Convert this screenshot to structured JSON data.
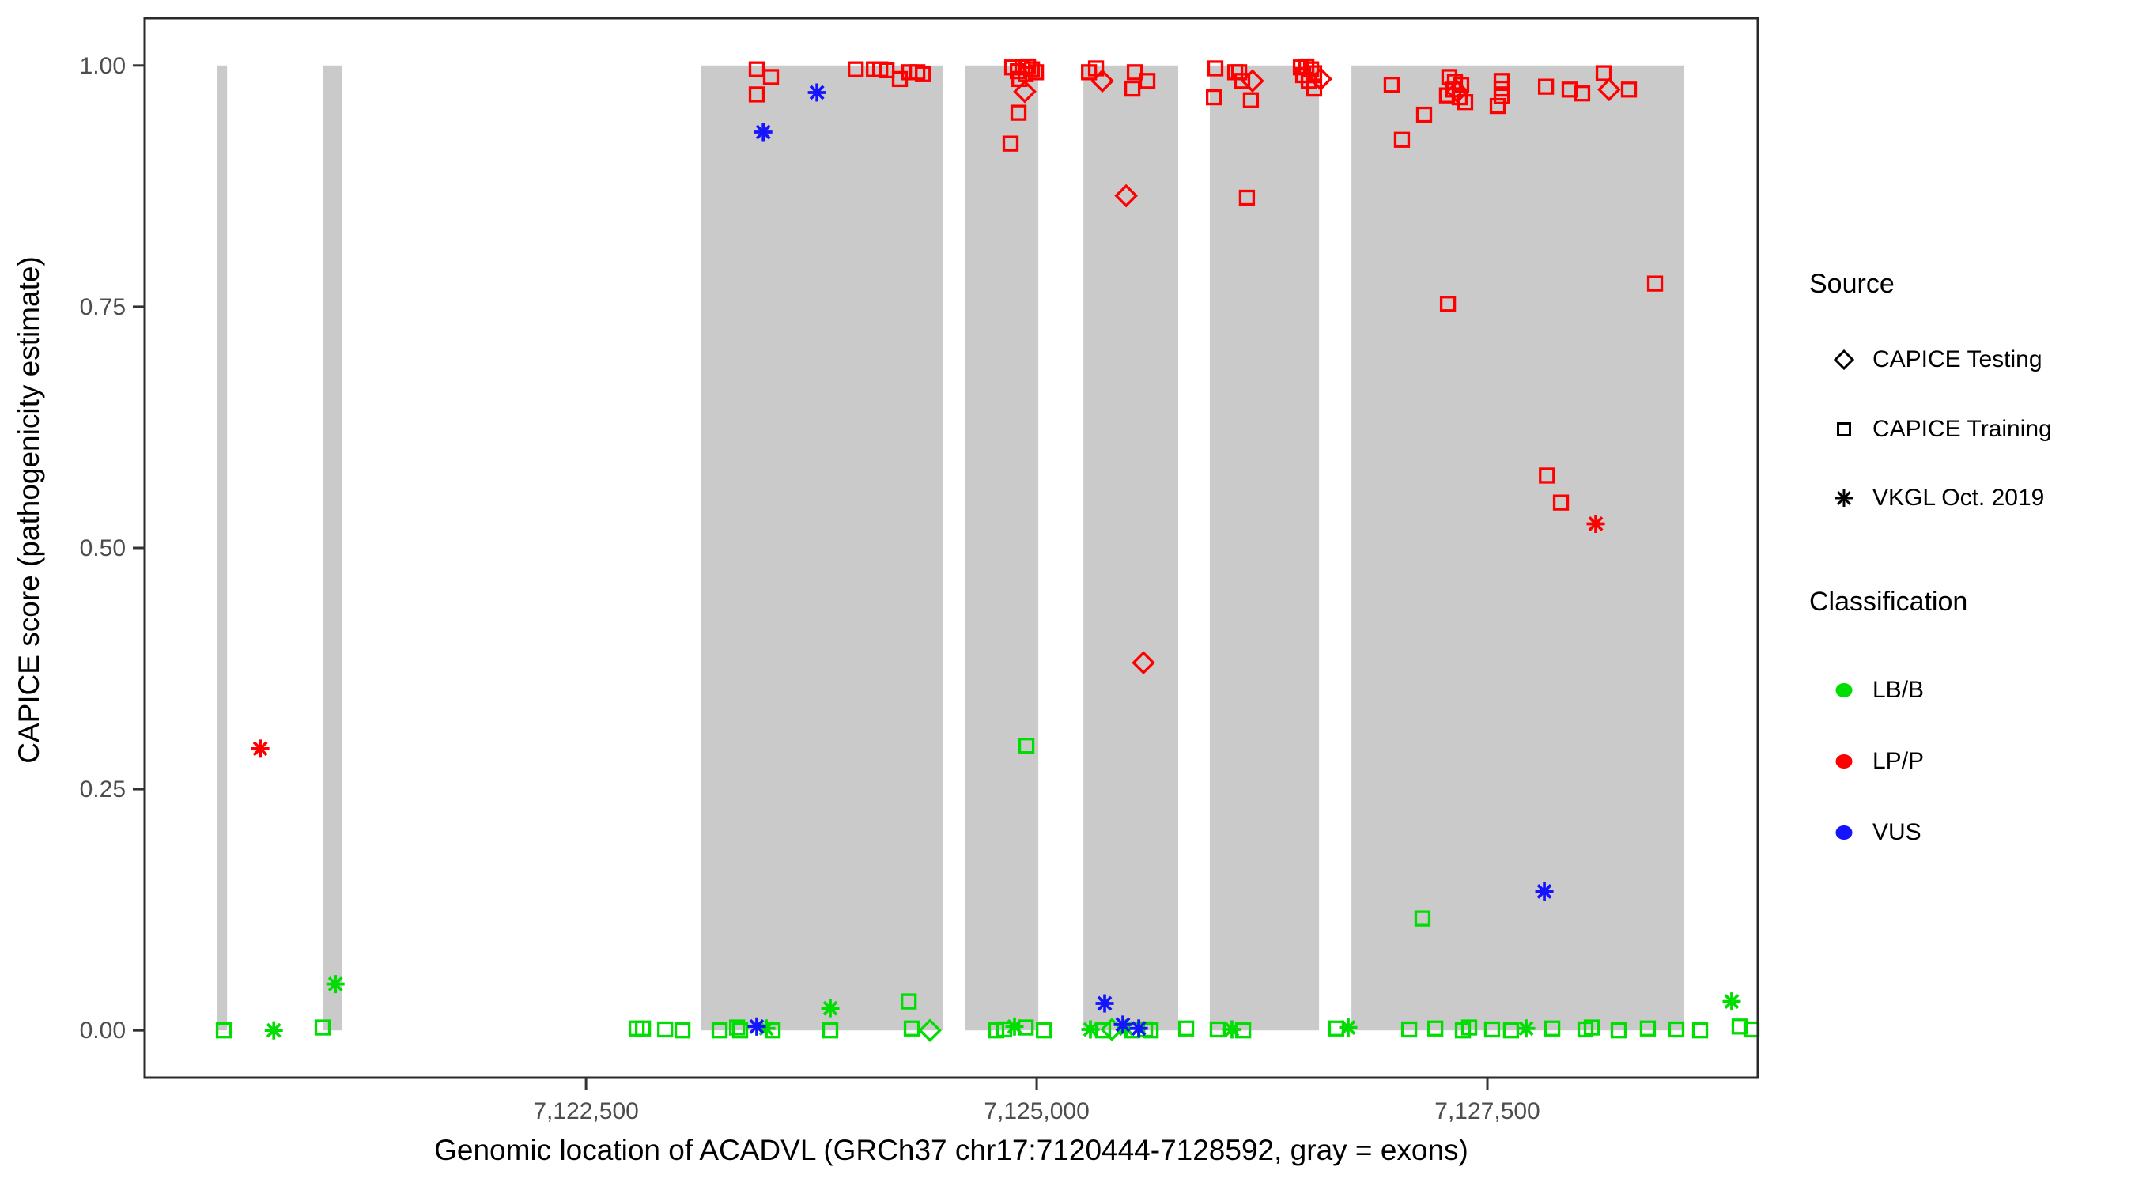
{
  "figure": {
    "x_axis_title": "Genomic location of ACADVL (GRCh37 chr17:7120444-7128592, gray = exons)",
    "y_axis_title": "CAPICE score (pathogenicity estimate)"
  },
  "legend": {
    "source": {
      "title": "Source",
      "items": [
        {
          "label": "CAPICE Testing",
          "marker": "diamond"
        },
        {
          "label": "CAPICE Training",
          "marker": "square"
        },
        {
          "label": "VKGL Oct. 2019",
          "marker": "asterisk"
        }
      ]
    },
    "classification": {
      "title": "Classification",
      "items": [
        {
          "label": "LB/B",
          "color": "#00DD00"
        },
        {
          "label": "LP/P",
          "color": "#FF0000"
        },
        {
          "label": "VUS",
          "color": "#1414FF"
        }
      ]
    }
  },
  "colors": {
    "exon_band": "#CACACA",
    "green": "#00DD00",
    "red": "#FF0000",
    "blue": "#1414FF",
    "tick_text": "#4D4D4D",
    "axis_line": "#2A2A2A",
    "background": "#FFFFFF"
  },
  "chart_data": {
    "type": "scatter",
    "title": "",
    "xlabel": "Genomic location of ACADVL (GRCh37 chr17:7120444-7128592, gray = exons)",
    "ylabel": "CAPICE score (pathogenicity estimate)",
    "x_range_bp": [
      7120052,
      7129000
    ],
    "y_range": [
      -0.049,
      1.049
    ],
    "grid": false,
    "legend_position": "right",
    "x_ticks": [
      {
        "value": 7122500,
        "label": "7,122,500"
      },
      {
        "value": 7125000,
        "label": "7,125,000"
      },
      {
        "value": 7127500,
        "label": "7,127,500"
      }
    ],
    "y_ticks": [
      {
        "value": 0.0,
        "label": "0.00"
      },
      {
        "value": 0.25,
        "label": "0.25"
      },
      {
        "value": 0.5,
        "label": "0.50"
      },
      {
        "value": 0.75,
        "label": "0.75"
      },
      {
        "value": 1.0,
        "label": "1.00"
      }
    ],
    "exon_bands_bp": [
      [
        7120452,
        7120509
      ],
      [
        7121039,
        7121145
      ],
      [
        7123136,
        7124478
      ],
      [
        7124605,
        7125009
      ],
      [
        7125259,
        7125785
      ],
      [
        7125960,
        7126566
      ],
      [
        7126746,
        7128592
      ]
    ],
    "point_format": [
      "bp",
      "score",
      "source"
    ],
    "source_codes": {
      "tr": "CAPICE Training (open square)",
      "te": "CAPICE Testing (open diamond)",
      "vk": "VKGL Oct. 2019 (asterisk)"
    },
    "series": [
      {
        "name": "LB/B",
        "classification": "LB/B",
        "color_key": "green",
        "points": [
          [
            7120491,
            0.0,
            "tr"
          ],
          [
            7120768,
            0.0,
            "vk"
          ],
          [
            7121039,
            0.003,
            "tr"
          ],
          [
            7121110,
            0.048,
            "vk"
          ],
          [
            7122781,
            0.002,
            "tr"
          ],
          [
            7122816,
            0.002,
            "tr"
          ],
          [
            7122939,
            0.001,
            "tr"
          ],
          [
            7123035,
            0.0,
            "tr"
          ],
          [
            7123241,
            0.0,
            "tr"
          ],
          [
            7123338,
            0.003,
            "tr"
          ],
          [
            7123355,
            0.0,
            "tr"
          ],
          [
            7123500,
            0.002,
            "vk"
          ],
          [
            7123535,
            0.0,
            "tr"
          ],
          [
            7123855,
            0.023,
            "vk"
          ],
          [
            7123855,
            0.0,
            "tr"
          ],
          [
            7124290,
            0.03,
            "tr"
          ],
          [
            7124307,
            0.002,
            "tr"
          ],
          [
            7124408,
            0.0,
            "te"
          ],
          [
            7124776,
            0.0,
            "tr"
          ],
          [
            7124820,
            0.001,
            "tr"
          ],
          [
            7124877,
            0.004,
            "vk"
          ],
          [
            7124939,
            0.003,
            "tr"
          ],
          [
            7124943,
            0.295,
            "tr"
          ],
          [
            7125040,
            0.0,
            "tr"
          ],
          [
            7125298,
            0.001,
            "vk"
          ],
          [
            7125368,
            0.0,
            "tr"
          ],
          [
            7125417,
            0.001,
            "te"
          ],
          [
            7125496,
            0.002,
            "vk"
          ],
          [
            7125531,
            0.0,
            "tr"
          ],
          [
            7125601,
            0.001,
            "tr"
          ],
          [
            7125632,
            0.0,
            "tr"
          ],
          [
            7125829,
            0.002,
            "tr"
          ],
          [
            7126004,
            0.001,
            "tr"
          ],
          [
            7126083,
            0.001,
            "vk"
          ],
          [
            7126145,
            0.0,
            "tr"
          ],
          [
            7126662,
            0.002,
            "tr"
          ],
          [
            7126728,
            0.003,
            "vk"
          ],
          [
            7127066,
            0.001,
            "tr"
          ],
          [
            7127140,
            0.116,
            "tr"
          ],
          [
            7127211,
            0.002,
            "tr"
          ],
          [
            7127364,
            0.0,
            "tr"
          ],
          [
            7127399,
            0.003,
            "tr"
          ],
          [
            7127526,
            0.001,
            "tr"
          ],
          [
            7127631,
            0.0,
            "tr"
          ],
          [
            7127715,
            0.002,
            "vk"
          ],
          [
            7127860,
            0.002,
            "tr"
          ],
          [
            7128044,
            0.001,
            "tr"
          ],
          [
            7128079,
            0.003,
            "tr"
          ],
          [
            7128228,
            0.0,
            "tr"
          ],
          [
            7128390,
            0.002,
            "tr"
          ],
          [
            7128548,
            0.001,
            "tr"
          ],
          [
            7128680,
            0.0,
            "tr"
          ],
          [
            7128855,
            0.03,
            "vk"
          ],
          [
            7128899,
            0.004,
            "tr"
          ],
          [
            7128965,
            0.001,
            "tr"
          ]
        ]
      },
      {
        "name": "LP/P",
        "classification": "LP/P",
        "color_key": "red",
        "points": [
          [
            7120693,
            0.292,
            "vk"
          ],
          [
            7123447,
            0.996,
            "tr"
          ],
          [
            7123526,
            0.988,
            "tr"
          ],
          [
            7123447,
            0.97,
            "tr"
          ],
          [
            7123996,
            0.996,
            "tr"
          ],
          [
            7124097,
            0.996,
            "tr"
          ],
          [
            7124132,
            0.996,
            "tr"
          ],
          [
            7124167,
            0.995,
            "tr"
          ],
          [
            7124241,
            0.986,
            "tr"
          ],
          [
            7124294,
            0.993,
            "tr"
          ],
          [
            7124338,
            0.993,
            "tr"
          ],
          [
            7124369,
            0.991,
            "tr"
          ],
          [
            7124855,
            0.919,
            "tr"
          ],
          [
            7124864,
            0.998,
            "tr"
          ],
          [
            7124895,
            0.994,
            "tr"
          ],
          [
            7124899,
            0.951,
            "tr"
          ],
          [
            7124904,
            0.986,
            "tr"
          ],
          [
            7124921,
            0.998,
            "tr"
          ],
          [
            7124934,
            0.973,
            "te"
          ],
          [
            7124939,
            0.991,
            "tr"
          ],
          [
            7124952,
            0.999,
            "tr"
          ],
          [
            7124974,
            0.996,
            "tr"
          ],
          [
            7124996,
            0.993,
            "tr"
          ],
          [
            7125290,
            0.993,
            "tr"
          ],
          [
            7125329,
            0.997,
            "tr"
          ],
          [
            7125364,
            0.984,
            "te"
          ],
          [
            7125496,
            0.865,
            "te"
          ],
          [
            7125531,
            0.976,
            "tr"
          ],
          [
            7125544,
            0.993,
            "tr"
          ],
          [
            7125592,
            0.381,
            "te"
          ],
          [
            7125614,
            0.984,
            "tr"
          ],
          [
            7125983,
            0.967,
            "tr"
          ],
          [
            7125991,
            0.997,
            "tr"
          ],
          [
            7126101,
            0.993,
            "tr"
          ],
          [
            7126123,
            0.993,
            "tr"
          ],
          [
            7126140,
            0.984,
            "tr"
          ],
          [
            7126166,
            0.863,
            "tr"
          ],
          [
            7126188,
            0.964,
            "tr"
          ],
          [
            7126197,
            0.984,
            "te"
          ],
          [
            7126465,
            0.998,
            "tr"
          ],
          [
            7126478,
            0.99,
            "tr"
          ],
          [
            7126496,
            0.999,
            "tr"
          ],
          [
            7126509,
            0.984,
            "tr"
          ],
          [
            7126522,
            0.996,
            "tr"
          ],
          [
            7126539,
            0.992,
            "tr"
          ],
          [
            7126539,
            0.976,
            "tr"
          ],
          [
            7126575,
            0.986,
            "te"
          ],
          [
            7126969,
            0.98,
            "tr"
          ],
          [
            7127026,
            0.923,
            "tr"
          ],
          [
            7127149,
            0.949,
            "tr"
          ],
          [
            7127276,
            0.969,
            "tr"
          ],
          [
            7127281,
            0.753,
            "tr"
          ],
          [
            7127289,
            0.988,
            "tr"
          ],
          [
            7127311,
            0.975,
            "tr"
          ],
          [
            7127320,
            0.983,
            "tr"
          ],
          [
            7127333,
            0.973,
            "te"
          ],
          [
            7127346,
            0.967,
            "tr"
          ],
          [
            7127355,
            0.98,
            "tr"
          ],
          [
            7127377,
            0.962,
            "tr"
          ],
          [
            7127557,
            0.958,
            "tr"
          ],
          [
            7127579,
            0.984,
            "tr"
          ],
          [
            7127579,
            0.976,
            "tr"
          ],
          [
            7127579,
            0.968,
            "tr"
          ],
          [
            7127825,
            0.978,
            "tr"
          ],
          [
            7127830,
            0.575,
            "tr"
          ],
          [
            7127908,
            0.547,
            "tr"
          ],
          [
            7127956,
            0.975,
            "tr"
          ],
          [
            7128026,
            0.971,
            "tr"
          ],
          [
            7128101,
            0.525,
            "vk"
          ],
          [
            7128145,
            0.992,
            "tr"
          ],
          [
            7128175,
            0.975,
            "te"
          ],
          [
            7128285,
            0.975,
            "tr"
          ],
          [
            7128430,
            0.774,
            "tr"
          ]
        ]
      },
      {
        "name": "VUS",
        "classification": "VUS",
        "color_key": "blue",
        "points": [
          [
            7123447,
            0.004,
            "vk"
          ],
          [
            7123483,
            0.931,
            "vk"
          ],
          [
            7123781,
            0.972,
            "vk"
          ],
          [
            7125377,
            0.028,
            "vk"
          ],
          [
            7125478,
            0.006,
            "vk"
          ],
          [
            7125566,
            0.002,
            "vk"
          ],
          [
            7127816,
            0.144,
            "vk"
          ]
        ]
      }
    ]
  }
}
